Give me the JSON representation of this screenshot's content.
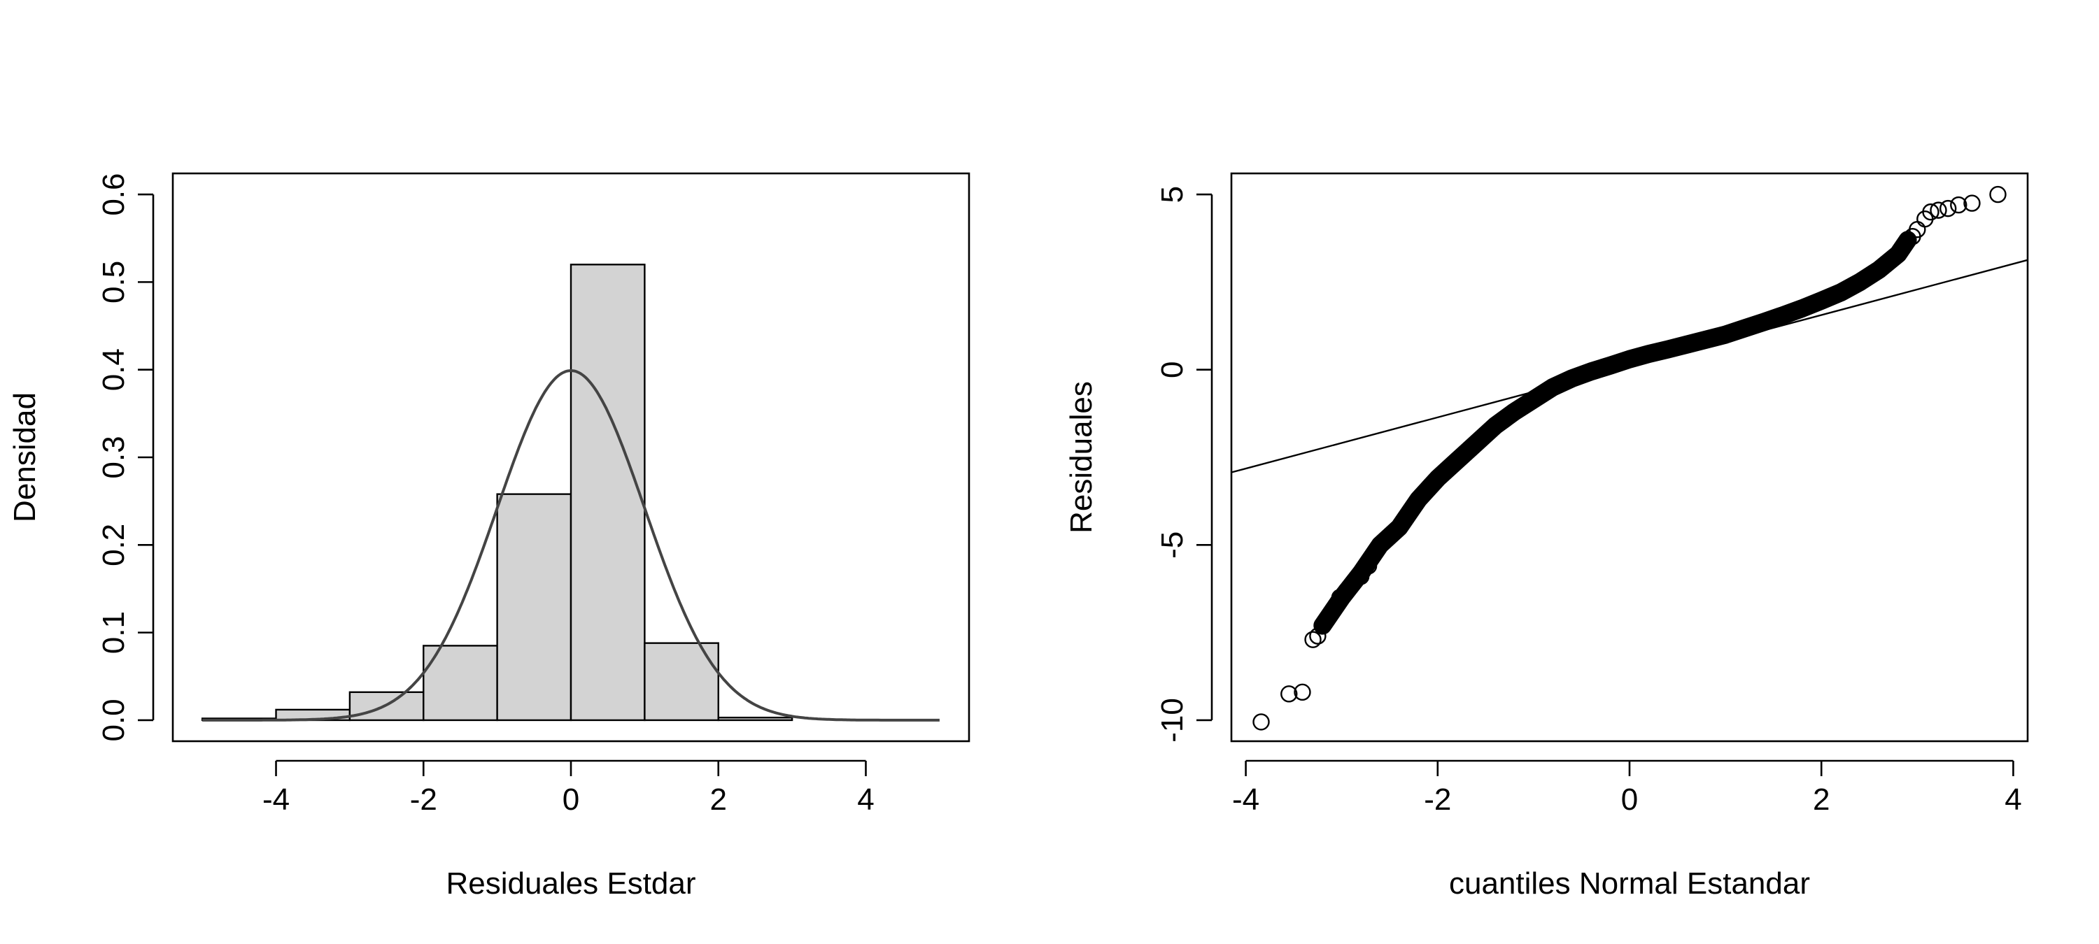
{
  "chart_data": [
    {
      "type": "histogram",
      "title": "",
      "xlabel": "Residuales Estdar",
      "ylabel": "Densidad",
      "xlim": [
        -5.4,
        5.4
      ],
      "ylim": [
        -0.024,
        0.624
      ],
      "x_ticks": [
        -4,
        -2,
        0,
        2,
        4
      ],
      "x_tick_labels": [
        "-4",
        "-2",
        "0",
        "2",
        "4"
      ],
      "y_ticks": [
        0.0,
        0.1,
        0.2,
        0.3,
        0.4,
        0.5,
        0.6
      ],
      "y_tick_labels": [
        "0.0",
        "0.1",
        "0.2",
        "0.3",
        "0.4",
        "0.5",
        "0.6"
      ],
      "bars": [
        {
          "x0": -5,
          "x1": -4,
          "density": 0.002
        },
        {
          "x0": -4,
          "x1": -3,
          "density": 0.012
        },
        {
          "x0": -3,
          "x1": -2,
          "density": 0.032
        },
        {
          "x0": -2,
          "x1": -1,
          "density": 0.085
        },
        {
          "x0": -1,
          "x1": 0,
          "density": 0.258
        },
        {
          "x0": 0,
          "x1": 1,
          "density": 0.52
        },
        {
          "x0": 1,
          "x1": 2,
          "density": 0.088
        },
        {
          "x0": 2,
          "x1": 3,
          "density": 0.003
        }
      ],
      "curve": {
        "type": "normal-density",
        "mean": 0,
        "sd": 1,
        "x_range": [
          -5,
          5
        ],
        "color": "#444444"
      },
      "bar_fill": "#d3d3d3",
      "grid": false,
      "legend": "none"
    },
    {
      "type": "scatter",
      "title": "",
      "xlabel": "cuantiles Normal Estandar",
      "ylabel": "Residuales",
      "xlim": [
        -4.15,
        4.15
      ],
      "ylim": [
        -10.6,
        5.6
      ],
      "x_ticks": [
        -4,
        -2,
        0,
        2,
        4
      ],
      "x_tick_labels": [
        "-4",
        "-2",
        "0",
        "2",
        "4"
      ],
      "y_ticks": [
        -10,
        -5,
        0,
        5
      ],
      "y_tick_labels": [
        "-10",
        "-5",
        "0",
        "5"
      ],
      "reference_line": {
        "intercept": 0.1,
        "slope": 0.73
      },
      "qq_curve": [
        [
          -3.2,
          -7.3
        ],
        [
          -3.0,
          -6.5
        ],
        [
          -2.8,
          -5.8
        ],
        [
          -2.6,
          -5.0
        ],
        [
          -2.4,
          -4.5
        ],
        [
          -2.2,
          -3.7
        ],
        [
          -2.0,
          -3.1
        ],
        [
          -1.8,
          -2.6
        ],
        [
          -1.6,
          -2.1
        ],
        [
          -1.4,
          -1.6
        ],
        [
          -1.2,
          -1.2
        ],
        [
          -1.0,
          -0.85
        ],
        [
          -0.8,
          -0.5
        ],
        [
          -0.6,
          -0.25
        ],
        [
          -0.4,
          -0.05
        ],
        [
          -0.2,
          0.12
        ],
        [
          0.0,
          0.3
        ],
        [
          0.2,
          0.45
        ],
        [
          0.4,
          0.58
        ],
        [
          0.6,
          0.72
        ],
        [
          0.8,
          0.86
        ],
        [
          1.0,
          1.0
        ],
        [
          1.2,
          1.18
        ],
        [
          1.4,
          1.36
        ],
        [
          1.6,
          1.55
        ],
        [
          1.8,
          1.75
        ],
        [
          2.0,
          1.97
        ],
        [
          2.2,
          2.2
        ],
        [
          2.4,
          2.5
        ],
        [
          2.6,
          2.85
        ],
        [
          2.8,
          3.3
        ],
        [
          2.9,
          3.7
        ]
      ],
      "tail_points": [
        [
          -3.84,
          -10.05
        ],
        [
          -3.55,
          -9.25
        ],
        [
          -3.41,
          -9.2
        ],
        [
          -3.3,
          -7.7
        ],
        [
          -3.25,
          -7.6
        ],
        [
          -3.17,
          -7.2
        ],
        [
          -3.1,
          -6.9
        ],
        [
          -3.02,
          -6.5
        ],
        [
          -2.95,
          -6.3
        ],
        [
          -2.88,
          -6.1
        ],
        [
          -2.8,
          -5.9
        ],
        [
          -2.72,
          -5.6
        ],
        [
          2.95,
          3.8
        ],
        [
          3.0,
          4.0
        ],
        [
          3.08,
          4.3
        ],
        [
          3.14,
          4.5
        ],
        [
          3.22,
          4.55
        ],
        [
          3.32,
          4.6
        ],
        [
          3.43,
          4.7
        ],
        [
          3.57,
          4.75
        ],
        [
          3.84,
          5.0
        ]
      ],
      "marker": "open-circle",
      "grid": false,
      "legend": "none"
    }
  ]
}
